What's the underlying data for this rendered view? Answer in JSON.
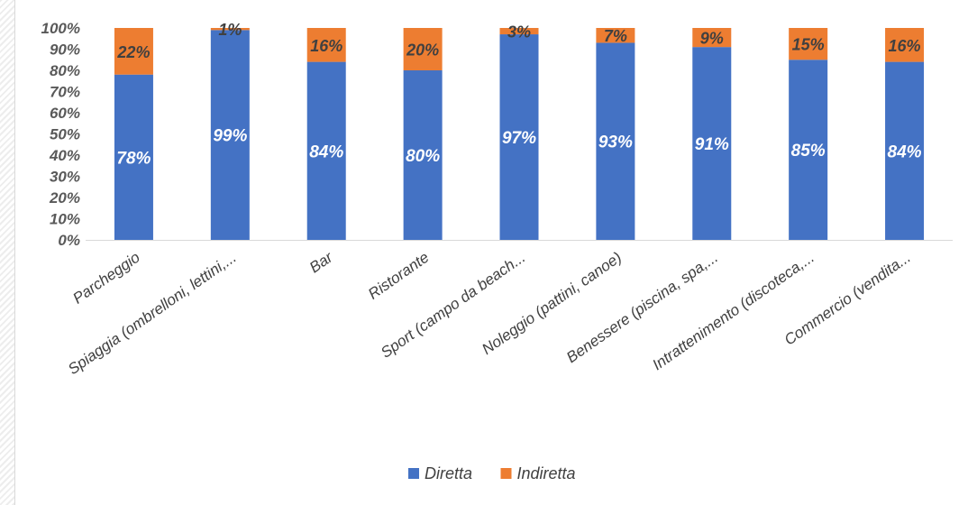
{
  "chart_data": {
    "type": "bar",
    "stacked": true,
    "title": "",
    "xlabel": "",
    "ylabel": "",
    "ylim": [
      0,
      100
    ],
    "yticks": [
      "0%",
      "10%",
      "20%",
      "30%",
      "40%",
      "50%",
      "60%",
      "70%",
      "80%",
      "90%",
      "100%"
    ],
    "categories": [
      "Parcheggio",
      "Spiaggia (ombrelloni, lettini,...",
      "Bar",
      "Ristorante",
      "Sport (campo da beach...",
      "Noleggio (pattini, canoe)",
      "Benessere (piscina, spa,...",
      "Intrattenimento (discoteca,...",
      "Commercio (vendita..."
    ],
    "series": [
      {
        "name": "Diretta",
        "color": "#4472c4",
        "values": [
          78,
          99,
          84,
          80,
          97,
          93,
          91,
          85,
          84
        ],
        "labels": [
          "78%",
          "99%",
          "84%",
          "80%",
          "97%",
          "93%",
          "91%",
          "85%",
          "84%"
        ]
      },
      {
        "name": "Indiretta",
        "color": "#ed7d31",
        "values": [
          22,
          1,
          16,
          20,
          3,
          7,
          9,
          15,
          16
        ],
        "labels": [
          "22%",
          "1%",
          "16%",
          "20%",
          "3%",
          "7%",
          "9%",
          "15%",
          "16%"
        ]
      }
    ],
    "legend": "bottom",
    "grid": false
  }
}
